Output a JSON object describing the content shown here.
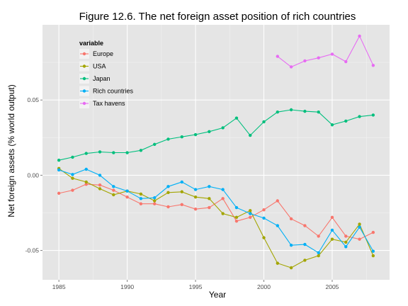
{
  "chart_data": {
    "type": "line",
    "title": "Figure 12.6. The net foreign asset position of rich countries",
    "xlabel": "Year",
    "ylabel": "Net foreign assets (% world output)",
    "xlim": [
      1983.8,
      2009.2
    ],
    "ylim": [
      -0.0695,
      0.1
    ],
    "x_ticks": [
      1985,
      1990,
      1995,
      2000,
      2005
    ],
    "x_tick_labels": [
      "1985",
      "1990",
      "1995",
      "2000",
      "2005"
    ],
    "y_ticks": [
      -0.05,
      0.0,
      0.05
    ],
    "y_tick_labels": [
      "-0.05",
      "0.00",
      "0.05"
    ],
    "grid": true,
    "legend": {
      "title": "variable",
      "position": "top-left inside"
    },
    "series": [
      {
        "name": "Europe",
        "color": "#f8766d",
        "x": [
          1985,
          1986,
          1987,
          1988,
          1989,
          1990,
          1991,
          1992,
          1993,
          1994,
          1995,
          1996,
          1997,
          1998,
          1999,
          2000,
          2001,
          2002,
          2003,
          2004,
          2005,
          2006,
          2007,
          2008
        ],
        "y": [
          -0.012,
          -0.01,
          -0.006,
          -0.0065,
          -0.01,
          -0.0145,
          -0.019,
          -0.019,
          -0.021,
          -0.0195,
          -0.0225,
          -0.0215,
          -0.0155,
          -0.0305,
          -0.028,
          -0.023,
          -0.017,
          -0.029,
          -0.0335,
          -0.0405,
          -0.028,
          -0.0405,
          -0.0425,
          -0.038
        ]
      },
      {
        "name": "USA",
        "color": "#a3a500",
        "x": [
          1985,
          1986,
          1987,
          1988,
          1989,
          1990,
          1991,
          1992,
          1993,
          1994,
          1995,
          1996,
          1997,
          1998,
          1999,
          2000,
          2001,
          2002,
          2003,
          2004,
          2005,
          2006,
          2007,
          2008
        ],
        "y": [
          0.0045,
          -0.002,
          -0.0045,
          -0.009,
          -0.013,
          -0.0105,
          -0.0125,
          -0.017,
          -0.0115,
          -0.011,
          -0.0145,
          -0.0155,
          -0.0255,
          -0.028,
          -0.0235,
          -0.0415,
          -0.0585,
          -0.0615,
          -0.0565,
          -0.0535,
          -0.0425,
          -0.0445,
          -0.0325,
          -0.0535
        ]
      },
      {
        "name": "Japan",
        "color": "#00bf7d",
        "x": [
          1985,
          1986,
          1987,
          1988,
          1989,
          1990,
          1991,
          1992,
          1993,
          1994,
          1995,
          1996,
          1997,
          1998,
          1999,
          2000,
          2001,
          2002,
          2003,
          2004,
          2005,
          2006,
          2007,
          2008
        ],
        "y": [
          0.01,
          0.012,
          0.0145,
          0.0155,
          0.015,
          0.015,
          0.0165,
          0.0205,
          0.024,
          0.0255,
          0.027,
          0.029,
          0.0315,
          0.038,
          0.0265,
          0.0355,
          0.042,
          0.0435,
          0.0425,
          0.042,
          0.0335,
          0.036,
          0.039,
          0.04
        ]
      },
      {
        "name": "Rich countries",
        "color": "#00b0f6",
        "x": [
          1985,
          1986,
          1987,
          1988,
          1989,
          1990,
          1991,
          1992,
          1993,
          1994,
          1995,
          1996,
          1997,
          1998,
          1999,
          2000,
          2001,
          2002,
          2003,
          2004,
          2005,
          2006,
          2007,
          2008
        ],
        "y": [
          0.0035,
          0.0005,
          0.004,
          0.0,
          -0.0075,
          -0.0105,
          -0.0155,
          -0.015,
          -0.0075,
          -0.0045,
          -0.0095,
          -0.0075,
          -0.0095,
          -0.0215,
          -0.0255,
          -0.0285,
          -0.0335,
          -0.0465,
          -0.046,
          -0.0515,
          -0.0365,
          -0.0475,
          -0.0345,
          -0.0505
        ]
      },
      {
        "name": "Tax havens",
        "color": "#e76bf3",
        "x": [
          2001,
          2002,
          2003,
          2004,
          2005,
          2006,
          2007,
          2008
        ],
        "y": [
          0.079,
          0.072,
          0.076,
          0.078,
          0.0805,
          0.0755,
          0.0925,
          0.073
        ]
      }
    ]
  }
}
